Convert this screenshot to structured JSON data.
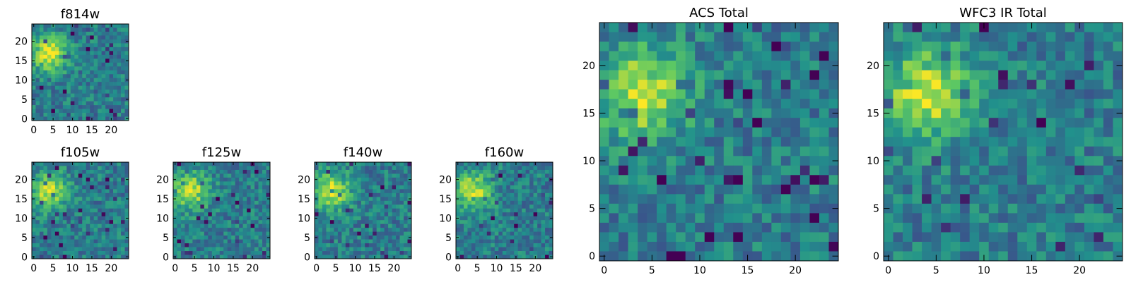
{
  "figure": {
    "colormap": "viridis",
    "colormap_stops": [
      "#440154",
      "#3b528b",
      "#21918c",
      "#5ec962",
      "#fde725"
    ]
  },
  "chart_data": [
    {
      "type": "heatmap",
      "title": "f814w",
      "grid_size": 25,
      "xlim": [
        -0.5,
        24.5
      ],
      "ylim": [
        -0.5,
        24.5
      ],
      "xticks": [
        0,
        5,
        10,
        15,
        20
      ],
      "yticks": [
        0,
        5,
        10,
        15,
        20
      ],
      "xlabel": "",
      "ylabel": "",
      "peak": {
        "x": 4,
        "y": 17
      },
      "seed": 11
    },
    {
      "type": "heatmap",
      "title": "f105w",
      "grid_size": 25,
      "xlim": [
        -0.5,
        24.5
      ],
      "ylim": [
        -0.5,
        24.5
      ],
      "xticks": [
        0,
        5,
        10,
        15,
        20
      ],
      "yticks": [
        0,
        5,
        10,
        15,
        20
      ],
      "xlabel": "",
      "ylabel": "",
      "peak": {
        "x": 4,
        "y": 17
      },
      "seed": 23
    },
    {
      "type": "heatmap",
      "title": "f125w",
      "grid_size": 25,
      "xlim": [
        -0.5,
        24.5
      ],
      "ylim": [
        -0.5,
        24.5
      ],
      "xticks": [
        0,
        5,
        10,
        15,
        20
      ],
      "yticks": [
        0,
        5,
        10,
        15,
        20
      ],
      "xlabel": "",
      "ylabel": "",
      "peak": {
        "x": 4,
        "y": 17
      },
      "seed": 37
    },
    {
      "type": "heatmap",
      "title": "f140w",
      "grid_size": 25,
      "xlim": [
        -0.5,
        24.5
      ],
      "ylim": [
        -0.5,
        24.5
      ],
      "xticks": [
        0,
        5,
        10,
        15,
        20
      ],
      "yticks": [
        0,
        5,
        10,
        15,
        20
      ],
      "xlabel": "",
      "ylabel": "",
      "peak": {
        "x": 4,
        "y": 17
      },
      "seed": 41
    },
    {
      "type": "heatmap",
      "title": "f160w",
      "grid_size": 25,
      "xlim": [
        -0.5,
        24.5
      ],
      "ylim": [
        -0.5,
        24.5
      ],
      "xticks": [
        0,
        5,
        10,
        15,
        20
      ],
      "yticks": [
        0,
        5,
        10,
        15,
        20
      ],
      "xlabel": "",
      "ylabel": "",
      "peak": {
        "x": 4,
        "y": 17
      },
      "seed": 53
    },
    {
      "type": "heatmap",
      "title": "ACS Total",
      "grid_size": 25,
      "xlim": [
        -0.5,
        24.5
      ],
      "ylim": [
        -0.5,
        24.5
      ],
      "xticks": [
        0,
        5,
        10,
        15,
        20
      ],
      "yticks": [
        0,
        5,
        10,
        15,
        20
      ],
      "xlabel": "",
      "ylabel": "",
      "peak": {
        "x": 4,
        "y": 17
      },
      "seed": 67
    },
    {
      "type": "heatmap",
      "title": "WFC3 IR Total",
      "grid_size": 25,
      "xlim": [
        -0.5,
        24.5
      ],
      "ylim": [
        -0.5,
        24.5
      ],
      "xticks": [
        0,
        5,
        10,
        15,
        20
      ],
      "yticks": [
        0,
        5,
        10,
        15,
        20
      ],
      "xlabel": "",
      "ylabel": "",
      "peak": {
        "x": 4,
        "y": 17
      },
      "seed": 79
    }
  ]
}
